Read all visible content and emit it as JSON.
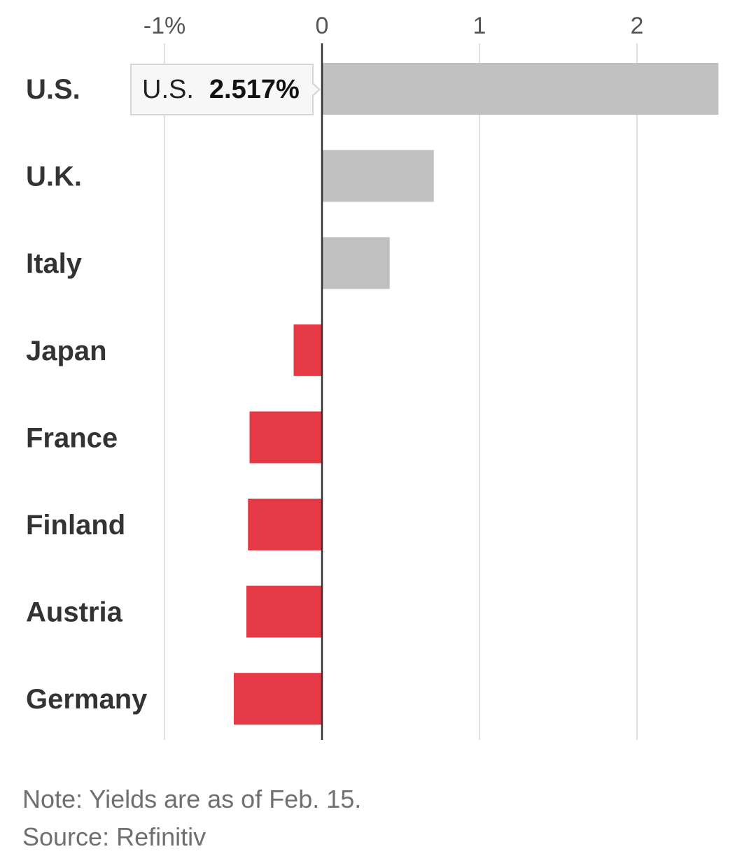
{
  "chart_data": {
    "type": "bar",
    "orientation": "horizontal",
    "categories": [
      "U.S.",
      "U.K.",
      "Italy",
      "Japan",
      "France",
      "Finland",
      "Austria",
      "Germany"
    ],
    "values": [
      2.517,
      0.71,
      0.43,
      -0.18,
      -0.46,
      -0.47,
      -0.48,
      -0.56
    ],
    "xlim": [
      -1,
      2.5
    ],
    "x_ticks": [
      -1,
      0,
      1,
      2
    ],
    "x_tick_labels": [
      "-1%",
      "0",
      "1",
      "2"
    ],
    "grid": true,
    "colors": {
      "positive": "#c0c0c0",
      "negative": "#e63946",
      "zero_line": "#333333",
      "grid": "#e0e0e0"
    },
    "tooltip": {
      "label": "U.S.",
      "value": "2.517%"
    }
  },
  "note": "Note: Yields are as of Feb. 15.",
  "source": "Source: Refinitiv"
}
